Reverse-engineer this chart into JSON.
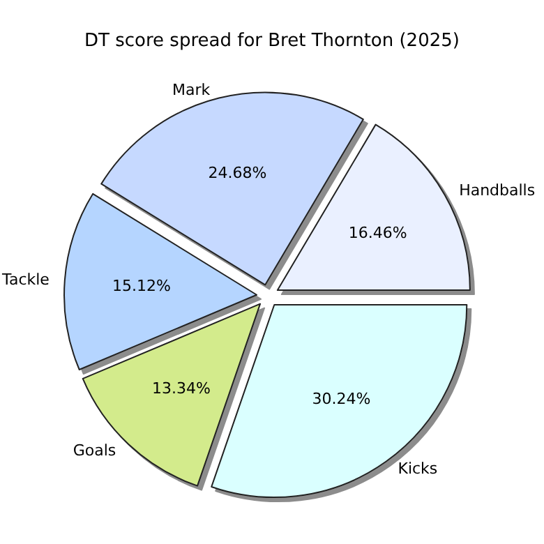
{
  "chart_data": {
    "type": "pie",
    "title": "DT score spread for Bret Thornton (2025)",
    "categories": [
      "Handballs",
      "Mark",
      "Tackle",
      "Goals",
      "Kicks"
    ],
    "values": [
      16.46,
      24.68,
      15.12,
      13.34,
      30.24
    ],
    "value_labels": [
      "16.46%",
      "24.68%",
      "15.12%",
      "13.34%",
      "30.24%"
    ],
    "colors": [
      "#eaf0ff",
      "#c6d9ff",
      "#b5d5ff",
      "#d3eb8c",
      "#daffff"
    ],
    "legend": false
  }
}
